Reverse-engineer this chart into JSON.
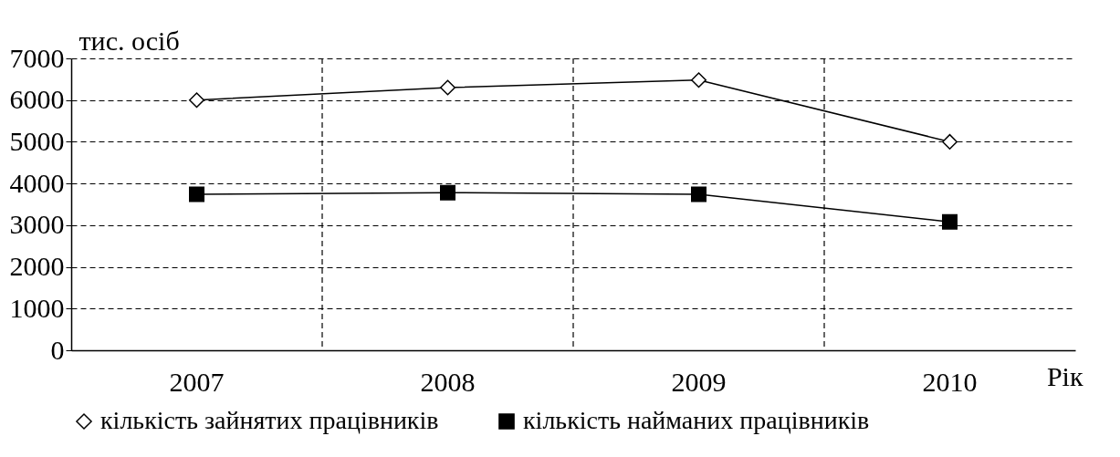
{
  "chart_data": {
    "type": "line",
    "xlabel": "Рік",
    "ylabel": "тис. осіб",
    "categories": [
      "2007",
      "2008",
      "2009",
      "2010"
    ],
    "series": [
      {
        "name": "кількість зайнятих працівників",
        "color": "#000000",
        "marker": "diamond",
        "values": [
          6000,
          6300,
          6480,
          5000
        ]
      },
      {
        "name": "кількість найманих працівників",
        "color": "#000000",
        "marker": "square",
        "values": [
          3740,
          3780,
          3740,
          3080
        ]
      }
    ],
    "ylim": [
      0,
      7000
    ],
    "yticks": [
      0,
      1000,
      2000,
      3000,
      4000,
      5000,
      6000,
      7000
    ],
    "grid": true,
    "legend": "bottom"
  }
}
